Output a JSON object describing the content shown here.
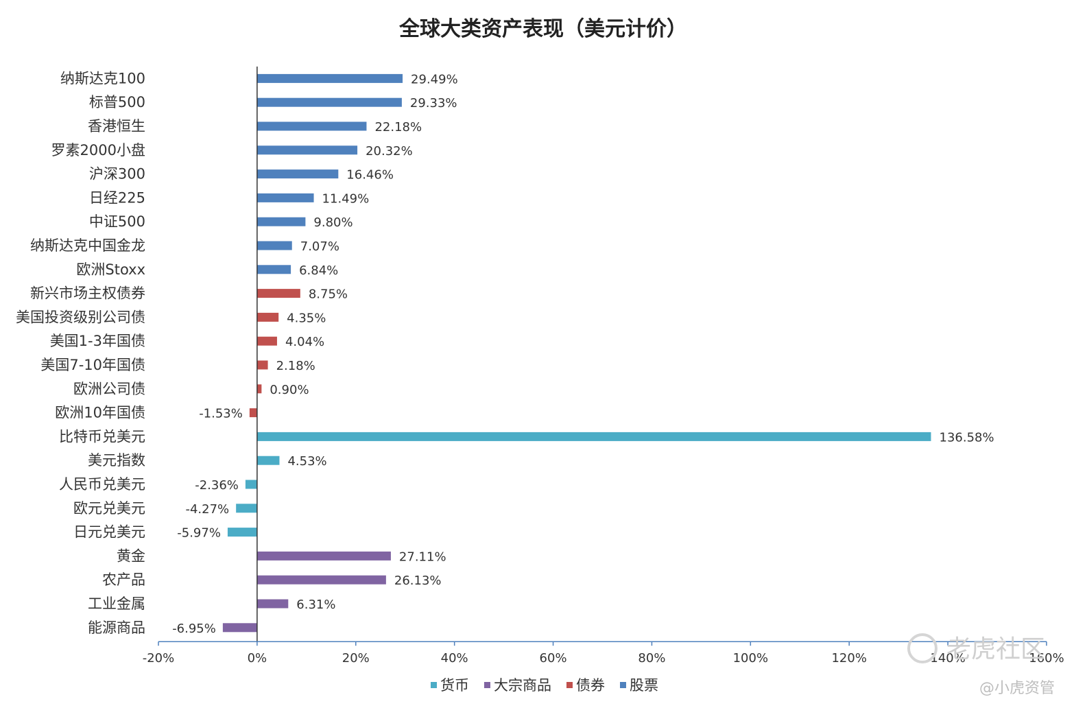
{
  "chart_data": {
    "type": "bar",
    "orientation": "horizontal",
    "title": "全球大类资产表现（美元计价）",
    "xlim": [
      -20,
      160
    ],
    "xticks": [
      "-20%",
      "0%",
      "20%",
      "40%",
      "60%",
      "80%",
      "100%",
      "120%",
      "140%",
      "160%"
    ],
    "legend_position": "bottom",
    "legend": [
      {
        "name": "货币",
        "color": "#4bacc6"
      },
      {
        "name": "大宗商品",
        "color": "#8064a2"
      },
      {
        "name": "债券",
        "color": "#c0504d"
      },
      {
        "name": "股票",
        "color": "#4f81bd"
      }
    ],
    "grid": false,
    "bars": [
      {
        "label": "纳斯达克100",
        "value": 29.49,
        "text": "29.49%",
        "group": "股票"
      },
      {
        "label": "标普500",
        "value": 29.33,
        "text": "29.33%",
        "group": "股票"
      },
      {
        "label": "香港恒生",
        "value": 22.18,
        "text": "22.18%",
        "group": "股票"
      },
      {
        "label": "罗素2000小盘",
        "value": 20.32,
        "text": "20.32%",
        "group": "股票"
      },
      {
        "label": "沪深300",
        "value": 16.46,
        "text": "16.46%",
        "group": "股票"
      },
      {
        "label": "日经225",
        "value": 11.49,
        "text": "11.49%",
        "group": "股票"
      },
      {
        "label": "中证500",
        "value": 9.8,
        "text": "9.80%",
        "group": "股票"
      },
      {
        "label": "纳斯达克中国金龙",
        "value": 7.07,
        "text": "7.07%",
        "group": "股票"
      },
      {
        "label": "欧洲Stoxx",
        "value": 6.84,
        "text": "6.84%",
        "group": "股票"
      },
      {
        "label": "新兴市场主权债券",
        "value": 8.75,
        "text": "8.75%",
        "group": "债券"
      },
      {
        "label": "美国投资级别公司债",
        "value": 4.35,
        "text": "4.35%",
        "group": "债券"
      },
      {
        "label": "美国1-3年国债",
        "value": 4.04,
        "text": "4.04%",
        "group": "债券"
      },
      {
        "label": "美国7-10年国债",
        "value": 2.18,
        "text": "2.18%",
        "group": "债券"
      },
      {
        "label": "欧洲公司债",
        "value": 0.9,
        "text": "0.90%",
        "group": "债券"
      },
      {
        "label": "欧洲10年国债",
        "value": -1.53,
        "text": "-1.53%",
        "group": "债券"
      },
      {
        "label": "比特币兑美元",
        "value": 136.58,
        "text": "136.58%",
        "group": "货币"
      },
      {
        "label": "美元指数",
        "value": 4.53,
        "text": "4.53%",
        "group": "货币"
      },
      {
        "label": "人民币兑美元",
        "value": -2.36,
        "text": "-2.36%",
        "group": "货币"
      },
      {
        "label": "欧元兑美元",
        "value": -4.27,
        "text": "-4.27%",
        "group": "货币"
      },
      {
        "label": "日元兑美元",
        "value": -5.97,
        "text": "-5.97%",
        "group": "货币"
      },
      {
        "label": "黄金",
        "value": 27.11,
        "text": "27.11%",
        "group": "大宗商品"
      },
      {
        "label": "农产品",
        "value": 26.13,
        "text": "26.13%",
        "group": "大宗商品"
      },
      {
        "label": "工业金属",
        "value": 6.31,
        "text": "6.31%",
        "group": "大宗商品"
      },
      {
        "label": "能源商品",
        "value": -6.95,
        "text": "-6.95%",
        "group": "大宗商品"
      }
    ]
  },
  "watermark": {
    "brand": "老虎社区",
    "author": "@小虎资管"
  }
}
